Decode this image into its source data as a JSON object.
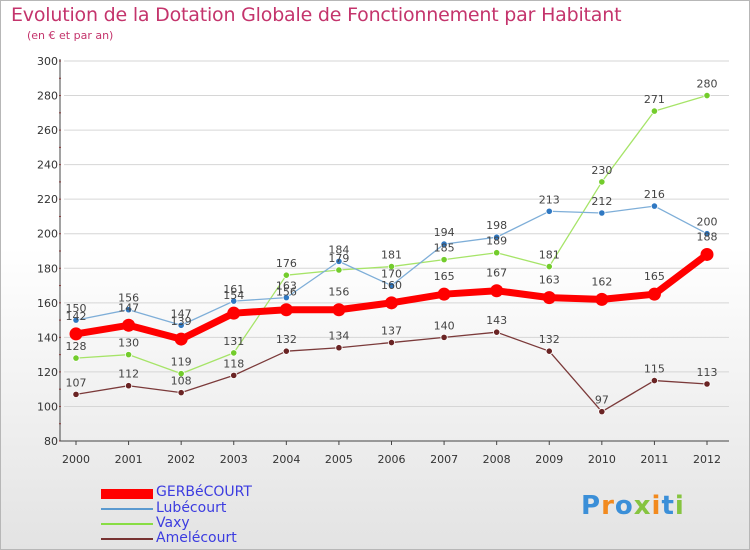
{
  "title": "Evolution de la Dotation Globale de Fonctionnement par Habitant",
  "subtitle": "(en € et par an)",
  "logo_text": "Proxiti",
  "chart_data": {
    "type": "line",
    "title": "Evolution de la Dotation Globale de Fonctionnement par Habitant",
    "subtitle": "(en € et par an)",
    "xlabel": "",
    "ylabel": "",
    "x": [
      "2000",
      "2001",
      "2002",
      "2003",
      "2004",
      "2005",
      "2006",
      "2007",
      "2008",
      "2009",
      "2010",
      "2011",
      "2012"
    ],
    "ylim": [
      80,
      300
    ],
    "yticks": [
      80,
      100,
      120,
      140,
      160,
      180,
      200,
      220,
      240,
      260,
      280,
      300
    ],
    "grid": "horizontal",
    "legend_position": "bottom-left",
    "series": [
      {
        "name": "GERBéCOURT",
        "color": "#ff0000",
        "values": [
          142,
          147,
          139,
          154,
          156,
          156,
          160,
          165,
          167,
          163,
          162,
          165,
          188
        ],
        "labels": [
          "142",
          "147",
          "139",
          "154",
          "156",
          "156",
          "160",
          "165",
          "167",
          "163",
          "162",
          "165",
          "188"
        ]
      },
      {
        "name": "Lubécourt",
        "color": "#5b9ad0",
        "values": [
          150,
          156,
          147,
          161,
          163,
          184,
          170,
          194,
          198,
          213,
          212,
          216,
          200
        ],
        "labels": [
          "150",
          "156",
          "147",
          "161",
          "163",
          "184",
          "170",
          "194",
          "198",
          "213",
          "212",
          "216",
          "200"
        ]
      },
      {
        "name": "Vaxy",
        "color": "#88dd44",
        "values": [
          128,
          130,
          119,
          131,
          176,
          179,
          181,
          185,
          189,
          181,
          230,
          271,
          280
        ],
        "labels": [
          "128",
          "130",
          "119",
          "131",
          "176",
          "179",
          "181",
          "185",
          "189",
          "181",
          "230",
          "271",
          "280"
        ]
      },
      {
        "name": "Amelécourt",
        "color": "#773333",
        "values": [
          107,
          112,
          108,
          118,
          132,
          134,
          137,
          140,
          143,
          132,
          97,
          115,
          113
        ],
        "labels": [
          "107",
          "112",
          "108",
          "118",
          "132",
          "134",
          "137",
          "140",
          "143",
          "132",
          "97",
          "115",
          "113"
        ]
      }
    ]
  }
}
